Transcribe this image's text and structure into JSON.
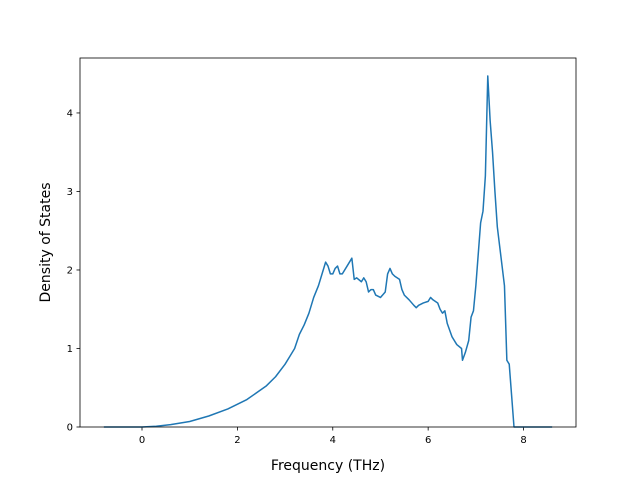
{
  "chart_data": {
    "type": "line",
    "title": "",
    "xlabel": "Frequency (THz)",
    "ylabel": "Density of States",
    "xlim": [
      -1.3,
      9.1
    ],
    "ylim": [
      0,
      4.7
    ],
    "x_ticks": [
      0,
      2,
      4,
      6,
      8
    ],
    "y_ticks": [
      0,
      1,
      2,
      3,
      4
    ],
    "x_tick_labels": [
      "0",
      "2",
      "4",
      "6",
      "8"
    ],
    "y_tick_labels": [
      "0",
      "1",
      "2",
      "3",
      "4"
    ],
    "grid": false,
    "legend": "none",
    "series": [
      {
        "color": "#1f77b4",
        "x": [
          -0.8,
          -0.4,
          0.0,
          0.3,
          0.6,
          1.0,
          1.4,
          1.8,
          2.2,
          2.6,
          2.8,
          3.0,
          3.1,
          3.2,
          3.3,
          3.4,
          3.5,
          3.6,
          3.7,
          3.8,
          3.85,
          3.9,
          3.95,
          4.0,
          4.05,
          4.1,
          4.15,
          4.2,
          4.3,
          4.4,
          4.45,
          4.5,
          4.6,
          4.65,
          4.7,
          4.75,
          4.8,
          4.85,
          4.9,
          5.0,
          5.1,
          5.15,
          5.2,
          5.25,
          5.3,
          5.4,
          5.45,
          5.5,
          5.6,
          5.7,
          5.75,
          5.8,
          5.9,
          6.0,
          6.05,
          6.1,
          6.15,
          6.2,
          6.25,
          6.3,
          6.35,
          6.4,
          6.5,
          6.6,
          6.7,
          6.72,
          6.78,
          6.85,
          6.9,
          6.95,
          7.0,
          7.05,
          7.1,
          7.15,
          7.2,
          7.25,
          7.3,
          7.35,
          7.4,
          7.45,
          7.5,
          7.55,
          7.6,
          7.65,
          7.7,
          7.75,
          7.8,
          7.85,
          7.9,
          8.0,
          8.3,
          8.6
        ],
        "values": [
          0.0,
          0.0,
          0.0,
          0.01,
          0.03,
          0.07,
          0.14,
          0.23,
          0.35,
          0.52,
          0.64,
          0.8,
          0.9,
          1.0,
          1.18,
          1.3,
          1.45,
          1.65,
          1.8,
          2.0,
          2.1,
          2.05,
          1.95,
          1.95,
          2.02,
          2.05,
          1.95,
          1.95,
          2.05,
          2.15,
          1.88,
          1.9,
          1.85,
          1.9,
          1.85,
          1.72,
          1.75,
          1.75,
          1.68,
          1.65,
          1.72,
          1.95,
          2.02,
          1.95,
          1.92,
          1.88,
          1.75,
          1.68,
          1.62,
          1.55,
          1.52,
          1.55,
          1.58,
          1.6,
          1.65,
          1.62,
          1.6,
          1.58,
          1.5,
          1.45,
          1.48,
          1.32,
          1.15,
          1.05,
          1.0,
          0.85,
          0.95,
          1.1,
          1.4,
          1.48,
          1.8,
          2.2,
          2.6,
          2.75,
          3.2,
          4.47,
          3.9,
          3.5,
          3.0,
          2.55,
          2.3,
          2.05,
          1.8,
          0.85,
          0.8,
          0.4,
          0.0,
          0.0,
          0.0,
          0.0,
          0.0,
          0.0
        ]
      }
    ]
  }
}
